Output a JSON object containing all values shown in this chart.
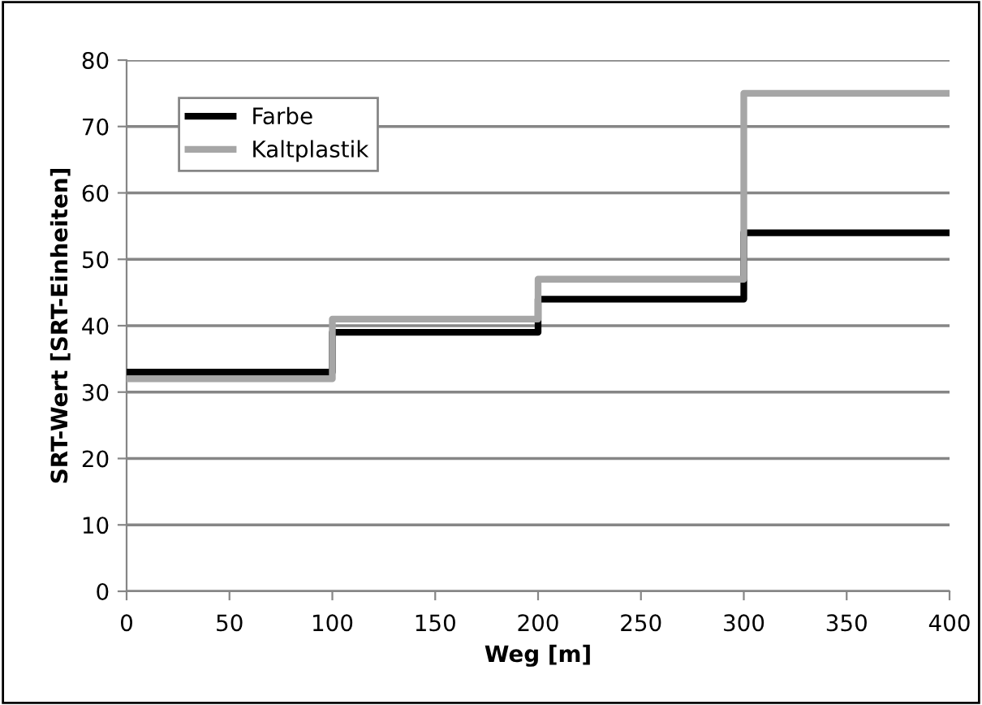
{
  "chart_data": {
    "type": "step",
    "xlabel": "Weg [m]",
    "ylabel": "SRT-Wert [SRT-Einheiten]",
    "x": [
      0,
      100,
      200,
      300,
      400
    ],
    "series": [
      {
        "name": "Farbe",
        "color": "#000000",
        "values": [
          33,
          39,
          44,
          54,
          54
        ]
      },
      {
        "name": "Kaltplastik",
        "color": "#a6a6a6",
        "values": [
          32,
          41,
          47,
          75,
          75
        ]
      }
    ],
    "xlim": [
      0,
      400
    ],
    "xticks": [
      0,
      50,
      100,
      150,
      200,
      250,
      300,
      350,
      400
    ],
    "ylim": [
      0,
      80
    ],
    "yticks": [
      0,
      10,
      20,
      30,
      40,
      50,
      60,
      70,
      80
    ],
    "grid": "y",
    "legend": "top left",
    "marker": "none",
    "line_style": "solid"
  }
}
